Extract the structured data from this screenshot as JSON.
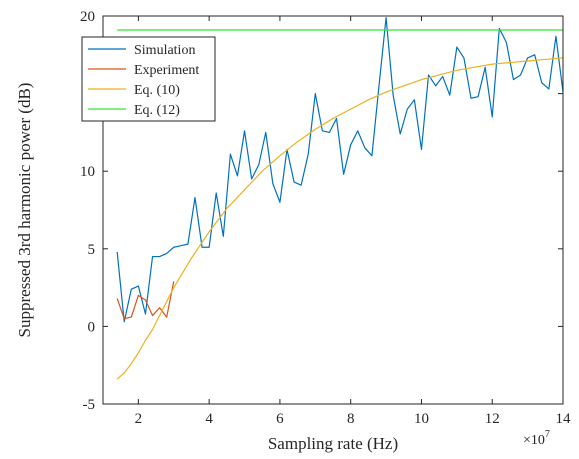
{
  "chart_data": {
    "type": "line",
    "xlabel": "Sampling rate (Hz)",
    "ylabel": "Suppressed 3rd harmonic power (dB)",
    "x_multiplier_label": "×10",
    "x_multiplier_exponent": "7",
    "x_scale": 10000000,
    "xlim": [
      1,
      14
    ],
    "ylim": [
      -5,
      20
    ],
    "x_ticks": [
      2,
      4,
      6,
      8,
      10,
      12,
      14
    ],
    "y_ticks": [
      -5,
      0,
      5,
      10,
      15,
      20
    ],
    "grid": false,
    "legend_position": "top-left",
    "series": [
      {
        "name": "Simulation",
        "color": "#0072BD",
        "x": [
          1.4,
          1.6,
          1.8,
          2.0,
          2.2,
          2.4,
          2.6,
          2.8,
          3.0,
          3.2,
          3.4,
          3.6,
          3.8,
          4.0,
          4.2,
          4.4,
          4.6,
          4.8,
          5.0,
          5.2,
          5.4,
          5.6,
          5.8,
          6.0,
          6.2,
          6.4,
          6.6,
          6.8,
          7.0,
          7.2,
          7.4,
          7.6,
          7.8,
          8.0,
          8.2,
          8.4,
          8.6,
          8.8,
          9.0,
          9.2,
          9.4,
          9.6,
          9.8,
          10.0,
          10.2,
          10.4,
          10.6,
          10.8,
          11.0,
          11.2,
          11.4,
          11.6,
          11.8,
          12.0,
          12.2,
          12.4,
          12.6,
          12.8,
          13.0,
          13.2,
          13.4,
          13.6,
          13.8,
          14.0
        ],
        "y": [
          4.8,
          0.3,
          2.4,
          2.6,
          0.8,
          4.5,
          4.5,
          4.7,
          5.1,
          5.2,
          5.3,
          8.3,
          5.1,
          5.1,
          8.6,
          5.8,
          11.1,
          9.7,
          12.6,
          9.5,
          10.4,
          12.5,
          9.2,
          8.0,
          11.4,
          9.3,
          9.1,
          11.1,
          15.0,
          12.6,
          12.5,
          13.4,
          9.8,
          11.7,
          12.6,
          11.5,
          11.0,
          15.5,
          19.9,
          14.9,
          12.4,
          14.0,
          14.6,
          11.4,
          16.2,
          15.5,
          16.1,
          14.9,
          18.0,
          17.3,
          14.7,
          14.8,
          16.7,
          13.5,
          19.2,
          18.3,
          15.9,
          16.2,
          17.3,
          17.5,
          15.7,
          15.3,
          18.7,
          15.1
        ]
      },
      {
        "name": "Experiment",
        "color": "#D95319",
        "x": [
          1.4,
          1.6,
          1.8,
          2.0,
          2.2,
          2.4,
          2.6,
          2.8,
          3.0
        ],
        "y": [
          1.8,
          0.5,
          0.6,
          2.0,
          1.7,
          0.7,
          1.2,
          0.6,
          2.9
        ]
      },
      {
        "name": "Eq. (10)",
        "color": "#EDB120",
        "x": [
          1.4,
          1.6,
          1.8,
          2.0,
          2.2,
          2.4,
          2.6,
          2.8,
          3.0,
          3.5,
          4.0,
          4.5,
          5.0,
          5.5,
          6.0,
          6.5,
          7.0,
          7.5,
          8.0,
          8.5,
          9.0,
          9.5,
          10.0,
          10.5,
          11.0,
          11.5,
          12.0,
          12.5,
          13.0,
          13.5,
          14.0
        ],
        "y": [
          -3.4,
          -3.0,
          -2.4,
          -1.7,
          -0.9,
          -0.2,
          0.7,
          1.6,
          2.5,
          4.4,
          6.1,
          7.6,
          8.8,
          10.0,
          11.0,
          11.9,
          12.7,
          13.4,
          14.0,
          14.6,
          15.1,
          15.5,
          15.9,
          16.2,
          16.5,
          16.7,
          16.9,
          17.0,
          17.1,
          17.2,
          17.3
        ]
      },
      {
        "name": "Eq. (12)",
        "color": "#33E833",
        "x": [
          1.4,
          14.0
        ],
        "y": [
          19.1,
          19.1
        ]
      }
    ]
  }
}
